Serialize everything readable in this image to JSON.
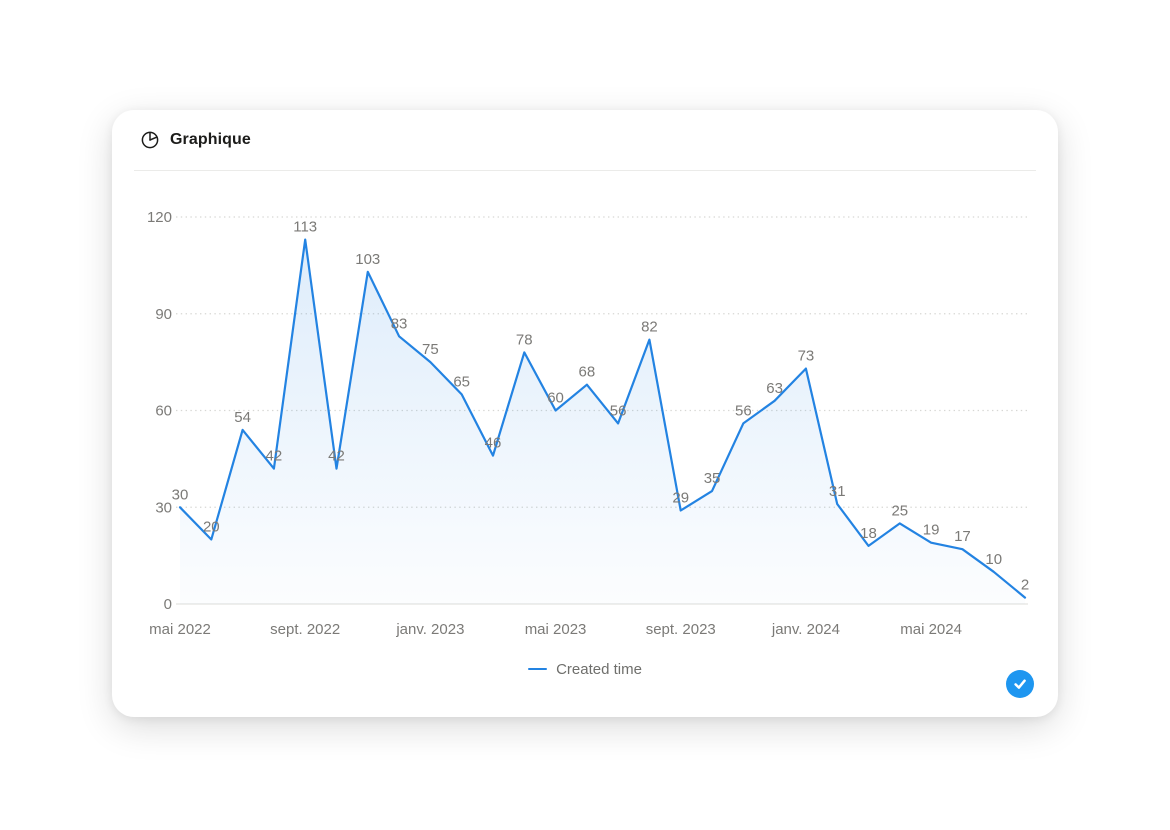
{
  "card": {
    "title": "Graphique",
    "title_icon": "pie-chart-icon"
  },
  "chart_data": {
    "type": "line",
    "title": "Graphique",
    "series": [
      {
        "name": "Created time",
        "color": "#2383E2",
        "values": [
          30,
          20,
          54,
          42,
          113,
          42,
          103,
          83,
          75,
          65,
          46,
          78,
          60,
          68,
          56,
          82,
          29,
          35,
          56,
          63,
          73,
          31,
          18,
          25,
          19,
          17,
          10,
          2
        ]
      }
    ],
    "point_labels_visible": true,
    "x_tick_labels": [
      "mai 2022",
      "sept. 2022",
      "janv. 2023",
      "mai 2023",
      "sept. 2023",
      "janv. 2024",
      "mai 2024"
    ],
    "x_tick_point_indices": [
      0,
      4,
      8,
      12,
      16,
      20,
      24
    ],
    "y_ticks": [
      0,
      30,
      60,
      90,
      120
    ],
    "ylim": [
      0,
      120
    ],
    "grid": "horizontal-dotted",
    "area_fill": true,
    "legend_position": "bottom-center",
    "legend": {
      "entries": [
        {
          "label": "Created time",
          "color": "#2383E2"
        }
      ]
    }
  },
  "footer": {
    "confirm_button": {
      "icon": "check-icon",
      "background": "#1E96F0"
    }
  },
  "colors": {
    "page_bg": "#ffffff",
    "card_bg": "#ffffff",
    "title_text": "#1c1c1a",
    "axis_text": "#7b7a77",
    "data_label_text": "#7b7a77",
    "grid_dotted": "#d7d7d4",
    "baseline": "#dcdcd9",
    "line": "#2383E2",
    "legend_text": "#6f6f6c"
  }
}
